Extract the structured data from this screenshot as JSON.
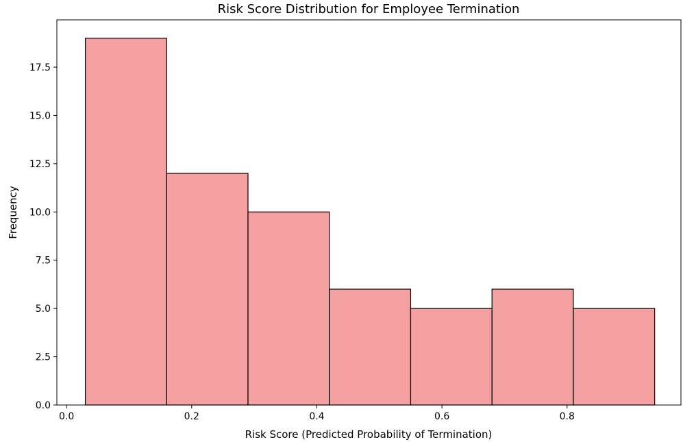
{
  "chart_data": {
    "type": "bar",
    "title": "Risk Score Distribution for Employee Termination",
    "xlabel": "Risk Score (Predicted Probability of Termination)",
    "ylabel": "Frequency",
    "xlim": [
      -0.0155,
      0.982
    ],
    "ylim": [
      0,
      19.95
    ],
    "grid": false,
    "bar_color": "#f08080",
    "bar_edge_color": "#000000",
    "bins": [
      {
        "start": 0.03,
        "end": 0.16,
        "count": 19
      },
      {
        "start": 0.16,
        "end": 0.29,
        "count": 12
      },
      {
        "start": 0.29,
        "end": 0.42,
        "count": 10
      },
      {
        "start": 0.42,
        "end": 0.55,
        "count": 6
      },
      {
        "start": 0.55,
        "end": 0.68,
        "count": 5
      },
      {
        "start": 0.68,
        "end": 0.81,
        "count": 6
      },
      {
        "start": 0.81,
        "end": 0.94,
        "count": 5
      }
    ],
    "x_ticks": [
      {
        "value": 0.0,
        "label": "0.0"
      },
      {
        "value": 0.2,
        "label": "0.2"
      },
      {
        "value": 0.4,
        "label": "0.4"
      },
      {
        "value": 0.6,
        "label": "0.6"
      },
      {
        "value": 0.8,
        "label": "0.8"
      }
    ],
    "y_ticks": [
      {
        "value": 0.0,
        "label": "0.0"
      },
      {
        "value": 2.5,
        "label": "2.5"
      },
      {
        "value": 5.0,
        "label": "5.0"
      },
      {
        "value": 7.5,
        "label": "7.5"
      },
      {
        "value": 10.0,
        "label": "10.0"
      },
      {
        "value": 12.5,
        "label": "12.5"
      },
      {
        "value": 15.0,
        "label": "15.0"
      },
      {
        "value": 17.5,
        "label": "17.5"
      }
    ]
  }
}
